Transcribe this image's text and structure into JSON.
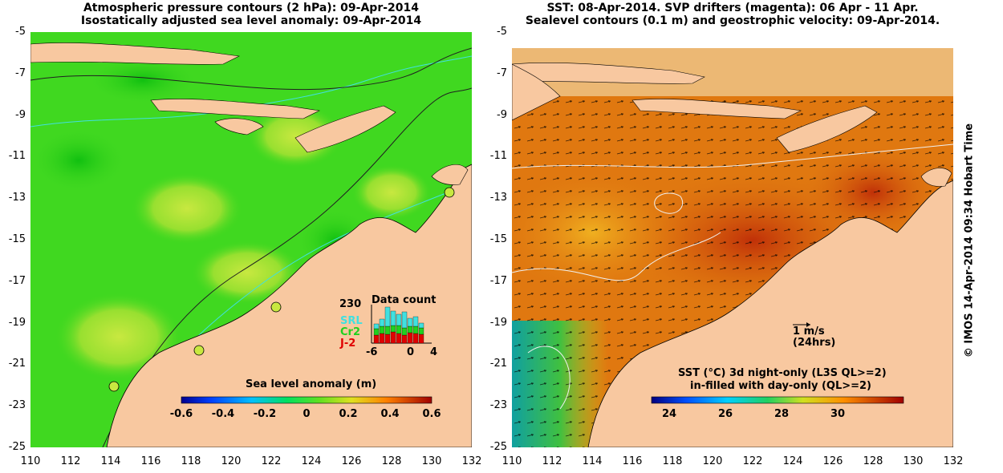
{
  "left_panel": {
    "title_line1": "Atmospheric pressure contours (2 hPa): 09-Apr-2014",
    "title_line2": "Isostatically adjusted sea level anomaly: 09-Apr-2014",
    "colorbar_label": "Sea level anomaly (m)",
    "colorbar_ticks": [
      "-0.6",
      "-0.4",
      "-0.2",
      "0",
      "0.2",
      "0.4",
      "0.6"
    ],
    "inset": {
      "title": "Data count",
      "ymax_label": "230",
      "series": [
        {
          "name": "SRL",
          "color": "#40e0e0"
        },
        {
          "name": "Cr2",
          "color": "#20d020"
        },
        {
          "name": "J-2",
          "color": "#e00000"
        }
      ],
      "xticks": [
        "-6",
        "0",
        "4"
      ]
    }
  },
  "right_panel": {
    "title_line1": "SST: 08-Apr-2014. SVP drifters (magenta): 06 Apr - 11 Apr.",
    "title_line2": "Sealevel contours (0.1 m) and geostrophic velocity: 09-Apr-2014.",
    "colorbar_label_line1": "SST (°C)  3d night-only (L3S QL>=2)",
    "colorbar_label_line2": "in-filled with day-only (QL>=2)",
    "colorbar_ticks": [
      "24",
      "26",
      "28",
      "30"
    ],
    "scale_arrow_label": "1 m/s",
    "scale_arrow_sublabel": "(24hrs)"
  },
  "axes": {
    "y_ticks": [
      "-5",
      "-7",
      "-9",
      "-11",
      "-13",
      "-15",
      "-17",
      "-19",
      "-21",
      "-23",
      "-25"
    ],
    "x_ticks": [
      "110",
      "112",
      "114",
      "116",
      "118",
      "120",
      "122",
      "124",
      "126",
      "128",
      "130",
      "132"
    ]
  },
  "credit": "© IMOS 14-Apr-2014 09:34 Hobart Time",
  "colors": {
    "land": "#f8c8a0",
    "sla_base": "#40d820",
    "sst_base": "#e07810"
  }
}
